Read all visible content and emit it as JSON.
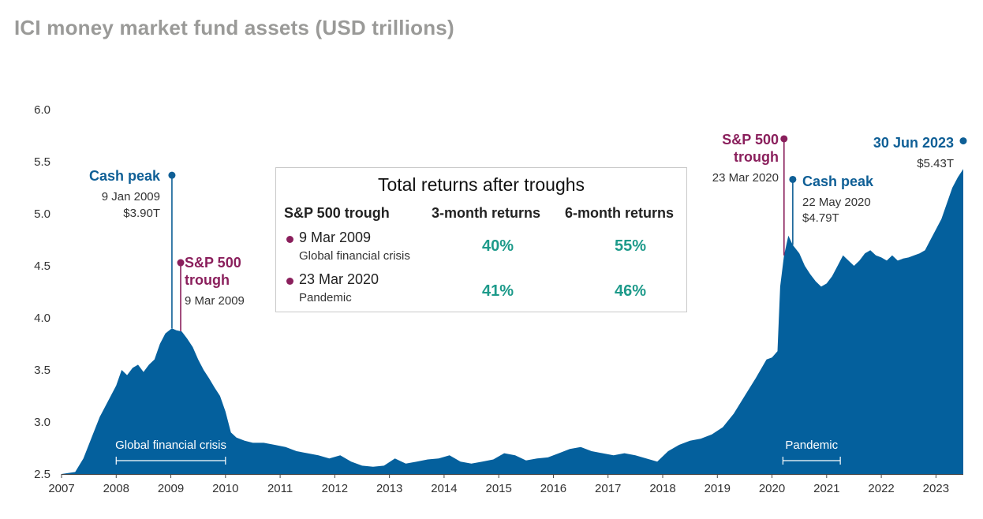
{
  "title": "ICI money market fund assets (USD trillions)",
  "colors": {
    "area": "#04609d",
    "cash": "#0f5f96",
    "trough": "#8a1f5c",
    "returns": "#1d9a8a",
    "title": "#9a9a98",
    "band_text": "#ffffff"
  },
  "chart_data": {
    "type": "area",
    "title": "ICI money market fund assets (USD trillions)",
    "xlabel": "",
    "ylabel": "",
    "ylim": [
      2.5,
      6.0
    ],
    "xlim": [
      2007.0,
      2023.5
    ],
    "y_ticks": [
      "6.0",
      "5.5",
      "5.0",
      "4.5",
      "4.0",
      "3.5",
      "3.0",
      "2.5"
    ],
    "x_ticks": [
      "2007",
      "2008",
      "2009",
      "2010",
      "2011",
      "2012",
      "2013",
      "2014",
      "2015",
      "2016",
      "2017",
      "2018",
      "2019",
      "2020",
      "2021",
      "2022",
      "2023"
    ],
    "series": [
      {
        "name": "ICI money market fund assets",
        "x": [
          2007.0,
          2007.25,
          2007.4,
          2007.55,
          2007.7,
          2007.85,
          2008.0,
          2008.1,
          2008.2,
          2008.3,
          2008.4,
          2008.5,
          2008.6,
          2008.7,
          2008.8,
          2008.9,
          2009.02,
          2009.1,
          2009.2,
          2009.3,
          2009.4,
          2009.5,
          2009.6,
          2009.7,
          2009.8,
          2009.9,
          2010.0,
          2010.1,
          2010.2,
          2010.35,
          2010.5,
          2010.7,
          2010.9,
          2011.1,
          2011.3,
          2011.5,
          2011.7,
          2011.9,
          2012.1,
          2012.3,
          2012.5,
          2012.7,
          2012.9,
          2013.1,
          2013.3,
          2013.5,
          2013.7,
          2013.9,
          2014.1,
          2014.3,
          2014.5,
          2014.7,
          2014.9,
          2015.1,
          2015.3,
          2015.5,
          2015.7,
          2015.9,
          2016.1,
          2016.3,
          2016.5,
          2016.7,
          2016.9,
          2017.1,
          2017.3,
          2017.5,
          2017.7,
          2017.9,
          2018.1,
          2018.3,
          2018.5,
          2018.7,
          2018.9,
          2019.1,
          2019.3,
          2019.5,
          2019.7,
          2019.9,
          2020.0,
          2020.1,
          2020.15,
          2020.22,
          2020.3,
          2020.38,
          2020.5,
          2020.6,
          2020.7,
          2020.8,
          2020.9,
          2021.0,
          2021.1,
          2021.2,
          2021.3,
          2021.4,
          2021.5,
          2021.6,
          2021.7,
          2021.8,
          2021.9,
          2022.0,
          2022.1,
          2022.2,
          2022.3,
          2022.4,
          2022.5,
          2022.6,
          2022.7,
          2022.8,
          2022.9,
          2023.0,
          2023.1,
          2023.2,
          2023.3,
          2023.4,
          2023.5
        ],
        "values": [
          2.5,
          2.52,
          2.65,
          2.85,
          3.05,
          3.2,
          3.35,
          3.5,
          3.45,
          3.52,
          3.55,
          3.48,
          3.55,
          3.6,
          3.75,
          3.85,
          3.9,
          3.88,
          3.87,
          3.8,
          3.72,
          3.6,
          3.5,
          3.42,
          3.33,
          3.25,
          3.1,
          2.9,
          2.85,
          2.82,
          2.8,
          2.8,
          2.78,
          2.76,
          2.72,
          2.7,
          2.68,
          2.65,
          2.68,
          2.62,
          2.58,
          2.57,
          2.58,
          2.65,
          2.6,
          2.62,
          2.64,
          2.65,
          2.68,
          2.62,
          2.6,
          2.62,
          2.64,
          2.7,
          2.68,
          2.63,
          2.65,
          2.66,
          2.7,
          2.74,
          2.76,
          2.72,
          2.7,
          2.68,
          2.7,
          2.68,
          2.65,
          2.62,
          2.72,
          2.78,
          2.82,
          2.84,
          2.88,
          2.95,
          3.08,
          3.25,
          3.42,
          3.6,
          3.62,
          3.68,
          4.3,
          4.6,
          4.79,
          4.7,
          4.62,
          4.5,
          4.42,
          4.35,
          4.3,
          4.33,
          4.4,
          4.5,
          4.6,
          4.55,
          4.5,
          4.55,
          4.62,
          4.65,
          4.6,
          4.58,
          4.55,
          4.6,
          4.55,
          4.57,
          4.58,
          4.6,
          4.62,
          4.65,
          4.75,
          4.85,
          4.95,
          5.1,
          5.25,
          5.35,
          5.43
        ]
      }
    ],
    "annotations": [
      {
        "kind": "cash_peak",
        "x": 2009.02,
        "y": 5.37,
        "label": "Cash peak",
        "date": "9 Jan 2009",
        "value": "$3.90T"
      },
      {
        "kind": "sp500_trough",
        "x": 2009.18,
        "y": 4.53,
        "label": "S&P 500 trough",
        "date": "9 Mar 2009"
      },
      {
        "kind": "sp500_trough",
        "x": 2020.22,
        "y": 5.72,
        "label": "S&P 500 trough",
        "date": "23 Mar 2020"
      },
      {
        "kind": "cash_peak",
        "x": 2020.38,
        "y": 5.33,
        "label": "Cash peak",
        "date": "22 May 2020",
        "value": "$4.79T"
      },
      {
        "kind": "latest",
        "x": 2023.5,
        "y": 5.7,
        "label": "30 Jun 2023",
        "value": "$5.43T"
      }
    ],
    "bands": [
      {
        "label": "Global financial crisis",
        "x_start": 2008.0,
        "x_end": 2010.0
      },
      {
        "label": "Pandemic",
        "x_start": 2020.2,
        "x_end": 2021.25
      }
    ]
  },
  "labels": {
    "cash_peak_2009": "Cash peak",
    "cash_peak_2009_date": "9 Jan 2009",
    "cash_peak_2009_value": "$3.90T",
    "trough_2009_l1": "S&P 500",
    "trough_2009_l2": "trough",
    "trough_2009_date": "9 Mar 2009",
    "trough_2020_l1": "S&P 500",
    "trough_2020_l2": "trough",
    "trough_2020_date": "23 Mar 2020",
    "cash_peak_2020": "Cash peak",
    "cash_peak_2020_date": "22 May 2020",
    "cash_peak_2020_value": "$4.79T",
    "latest_date": "30 Jun 2023",
    "latest_value": "$5.43T",
    "band_gfc": "Global financial crisis",
    "band_pandemic": "Pandemic"
  },
  "returns_table": {
    "title": "Total returns after troughs",
    "headers": [
      "S&P 500 trough",
      "3-month returns",
      "6-month returns"
    ],
    "rows": [
      {
        "date": "9 Mar 2009",
        "event": "Global financial crisis",
        "three_month": "40%",
        "six_month": "55%"
      },
      {
        "date": "23 Mar 2020",
        "event": "Pandemic",
        "three_month": "41%",
        "six_month": "46%"
      }
    ]
  }
}
